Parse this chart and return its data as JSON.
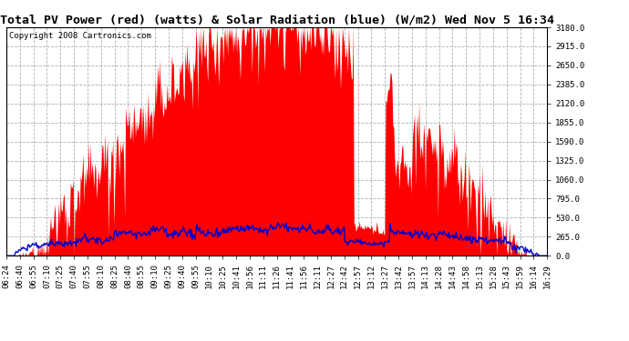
{
  "title": "Total PV Power (red) (watts) & Solar Radiation (blue) (W/m2) Wed Nov 5 16:34",
  "copyright": "Copyright 2008 Cartronics.com",
  "yticks": [
    0.0,
    265.0,
    530.0,
    795.0,
    1060.0,
    1325.0,
    1590.0,
    1855.0,
    2120.0,
    2385.0,
    2650.0,
    2915.0,
    3180.0
  ],
  "ylim": [
    0,
    3180.0
  ],
  "pv_color": "#ff0000",
  "solar_color": "#0000cc",
  "bg_color": "#ffffff",
  "grid_color": "#b0b0b0",
  "title_fontsize": 9.5,
  "copyright_fontsize": 6.5,
  "tick_fontsize": 6.5,
  "xtick_labels": [
    "06:24",
    "06:40",
    "06:55",
    "07:10",
    "07:25",
    "07:40",
    "07:55",
    "08:10",
    "08:25",
    "08:40",
    "08:55",
    "09:10",
    "09:25",
    "09:40",
    "09:55",
    "10:10",
    "10:25",
    "10:41",
    "10:56",
    "11:11",
    "11:26",
    "11:41",
    "11:56",
    "12:11",
    "12:27",
    "12:42",
    "12:57",
    "13:12",
    "13:27",
    "13:42",
    "13:57",
    "14:13",
    "14:28",
    "14:43",
    "14:58",
    "15:13",
    "15:28",
    "15:43",
    "15:59",
    "16:14",
    "16:29"
  ]
}
